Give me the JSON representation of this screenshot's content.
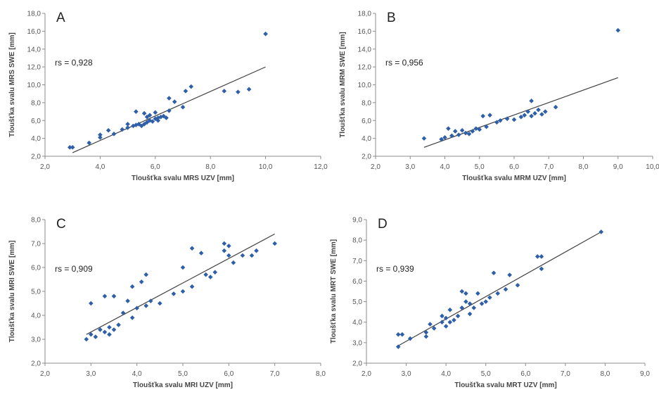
{
  "chart_data": [
    {
      "type": "scatter",
      "panel": "A",
      "annotation": "rs = 0,928",
      "xlabel": "Tloušťka svalu MRS UZV [mm]",
      "ylabel": "Tloušťka svalu MRS SWE [mm]",
      "xlim": [
        2,
        12
      ],
      "ylim": [
        2,
        18
      ],
      "xticks": [
        "2,0",
        "4,0",
        "6,0",
        "8,0",
        "10,0",
        "12,0"
      ],
      "yticks": [
        "2,0",
        "4,0",
        "6,0",
        "8,0",
        "10,0",
        "12,0",
        "14,0",
        "16,0",
        "18,0"
      ],
      "grid": false,
      "legend": false,
      "point_color": "#2e5fa8",
      "trendline": {
        "x": [
          3.0,
          10.0
        ],
        "y": [
          2.4,
          12.0
        ]
      },
      "points": [
        [
          2.9,
          3.0
        ],
        [
          3.0,
          3.0
        ],
        [
          3.6,
          3.5
        ],
        [
          4.0,
          4.1
        ],
        [
          4.0,
          4.4
        ],
        [
          4.3,
          4.9
        ],
        [
          4.5,
          4.5
        ],
        [
          4.8,
          5.0
        ],
        [
          5.0,
          5.2
        ],
        [
          5.0,
          5.6
        ],
        [
          5.2,
          5.4
        ],
        [
          5.3,
          7.0
        ],
        [
          5.3,
          5.5
        ],
        [
          5.4,
          5.6
        ],
        [
          5.5,
          5.4
        ],
        [
          5.6,
          5.6
        ],
        [
          5.6,
          6.8
        ],
        [
          5.7,
          5.8
        ],
        [
          5.7,
          6.4
        ],
        [
          5.8,
          6.0
        ],
        [
          5.8,
          6.6
        ],
        [
          5.9,
          5.9
        ],
        [
          6.0,
          6.2
        ],
        [
          6.0,
          6.9
        ],
        [
          6.1,
          6.0
        ],
        [
          6.1,
          6.3
        ],
        [
          6.2,
          6.4
        ],
        [
          6.3,
          6.5
        ],
        [
          6.4,
          6.3
        ],
        [
          6.5,
          7.1
        ],
        [
          6.5,
          8.5
        ],
        [
          6.7,
          8.1
        ],
        [
          7.0,
          7.5
        ],
        [
          7.1,
          9.3
        ],
        [
          7.3,
          9.8
        ],
        [
          8.5,
          9.3
        ],
        [
          9.0,
          9.2
        ],
        [
          9.4,
          9.5
        ],
        [
          10.0,
          15.7
        ]
      ]
    },
    {
      "type": "scatter",
      "panel": "B",
      "annotation": "rs = 0,956",
      "xlabel": "Tloušťka svalu MRM UZV [mm]",
      "ylabel": "Tloušťka svalu MRM SWE [mm]",
      "xlim": [
        2,
        10
      ],
      "ylim": [
        2,
        18
      ],
      "xticks": [
        "2,0",
        "3,0",
        "4,0",
        "5,0",
        "6,0",
        "7,0",
        "8,0",
        "9,0",
        "10,0"
      ],
      "yticks": [
        "2,0",
        "4,0",
        "6,0",
        "8,0",
        "10,0",
        "12,0",
        "14,0",
        "16,0",
        "18,0"
      ],
      "grid": false,
      "legend": false,
      "point_color": "#2e5fa8",
      "trendline": {
        "x": [
          3.4,
          9.0
        ],
        "y": [
          3.0,
          10.8
        ]
      },
      "points": [
        [
          3.4,
          4.0
        ],
        [
          3.9,
          3.9
        ],
        [
          4.0,
          4.1
        ],
        [
          4.1,
          5.1
        ],
        [
          4.2,
          4.3
        ],
        [
          4.3,
          4.8
        ],
        [
          4.4,
          4.4
        ],
        [
          4.5,
          4.9
        ],
        [
          4.6,
          4.6
        ],
        [
          4.7,
          4.5
        ],
        [
          4.8,
          4.8
        ],
        [
          4.9,
          5.1
        ],
        [
          5.0,
          5.0
        ],
        [
          5.1,
          6.5
        ],
        [
          5.2,
          5.3
        ],
        [
          5.3,
          6.6
        ],
        [
          5.5,
          5.8
        ],
        [
          5.6,
          6.0
        ],
        [
          5.8,
          6.2
        ],
        [
          6.0,
          6.1
        ],
        [
          6.2,
          6.4
        ],
        [
          6.3,
          6.6
        ],
        [
          6.4,
          7.0
        ],
        [
          6.5,
          6.5
        ],
        [
          6.5,
          8.2
        ],
        [
          6.6,
          6.8
        ],
        [
          6.7,
          7.2
        ],
        [
          6.8,
          6.7
        ],
        [
          6.9,
          7.0
        ],
        [
          7.2,
          7.5
        ],
        [
          9.0,
          16.1
        ]
      ]
    },
    {
      "type": "scatter",
      "panel": "C",
      "annotation": "rs = 0,909",
      "xlabel": "Tloušťka svalu MRI UZV [mm]",
      "ylabel": "Tloušťka svalu MRI SWE [mm]",
      "xlim": [
        2,
        8
      ],
      "ylim": [
        2,
        8
      ],
      "xticks": [
        "2,0",
        "3,0",
        "4,0",
        "5,0",
        "6,0",
        "7,0",
        "8,0"
      ],
      "yticks": [
        "2,0",
        "3,0",
        "4,0",
        "5,0",
        "6,0",
        "7,0",
        "8,0"
      ],
      "grid": false,
      "legend": false,
      "point_color": "#2e5fa8",
      "trendline": {
        "x": [
          2.9,
          7.0
        ],
        "y": [
          3.2,
          7.4
        ]
      },
      "points": [
        [
          2.9,
          3.0
        ],
        [
          3.0,
          3.2
        ],
        [
          3.0,
          4.5
        ],
        [
          3.1,
          3.1
        ],
        [
          3.2,
          3.4
        ],
        [
          3.3,
          3.3
        ],
        [
          3.3,
          4.8
        ],
        [
          3.4,
          3.5
        ],
        [
          3.4,
          3.2
        ],
        [
          3.5,
          4.8
        ],
        [
          3.5,
          3.4
        ],
        [
          3.6,
          3.6
        ],
        [
          3.7,
          4.1
        ],
        [
          3.8,
          4.6
        ],
        [
          3.9,
          3.9
        ],
        [
          3.9,
          5.2
        ],
        [
          4.0,
          4.3
        ],
        [
          4.1,
          5.4
        ],
        [
          4.2,
          5.7
        ],
        [
          4.2,
          4.4
        ],
        [
          4.3,
          4.6
        ],
        [
          4.5,
          4.5
        ],
        [
          4.8,
          4.9
        ],
        [
          5.0,
          6.0
        ],
        [
          5.0,
          5.0
        ],
        [
          5.2,
          5.2
        ],
        [
          5.2,
          6.8
        ],
        [
          5.4,
          6.6
        ],
        [
          5.5,
          5.7
        ],
        [
          5.6,
          5.6
        ],
        [
          5.7,
          5.8
        ],
        [
          5.9,
          6.7
        ],
        [
          5.9,
          7.0
        ],
        [
          6.0,
          6.5
        ],
        [
          6.0,
          6.9
        ],
        [
          6.1,
          6.2
        ],
        [
          6.3,
          6.5
        ],
        [
          6.5,
          6.5
        ],
        [
          6.6,
          6.7
        ],
        [
          7.0,
          7.0
        ]
      ]
    },
    {
      "type": "scatter",
      "panel": "D",
      "annotation": "rs = 0,939",
      "xlabel": "Tloušťka svalu MRT UZV [mm]",
      "ylabel": "Tloušťka svalu MRT SWE [mm]",
      "xlim": [
        2,
        9
      ],
      "ylim": [
        2,
        9
      ],
      "xticks": [
        "2,0",
        "3,0",
        "4,0",
        "5,0",
        "6,0",
        "7,0",
        "8,0",
        "9,0"
      ],
      "yticks": [
        "2,0",
        "3,0",
        "4,0",
        "5,0",
        "6,0",
        "7,0",
        "8,0",
        "9,0"
      ],
      "grid": false,
      "legend": false,
      "point_color": "#2e5fa8",
      "trendline": {
        "x": [
          2.8,
          7.9
        ],
        "y": [
          2.85,
          8.4
        ]
      },
      "points": [
        [
          2.8,
          2.8
        ],
        [
          2.8,
          3.4
        ],
        [
          2.9,
          3.4
        ],
        [
          3.1,
          3.2
        ],
        [
          3.5,
          3.3
        ],
        [
          3.5,
          3.5
        ],
        [
          3.6,
          3.9
        ],
        [
          3.7,
          3.7
        ],
        [
          3.9,
          4.0
        ],
        [
          3.9,
          4.3
        ],
        [
          4.0,
          3.8
        ],
        [
          4.0,
          4.2
        ],
        [
          4.1,
          4.6
        ],
        [
          4.1,
          4.0
        ],
        [
          4.2,
          4.1
        ],
        [
          4.3,
          4.3
        ],
        [
          4.4,
          4.7
        ],
        [
          4.4,
          5.5
        ],
        [
          4.5,
          5.0
        ],
        [
          4.5,
          5.4
        ],
        [
          4.6,
          4.4
        ],
        [
          4.6,
          4.9
        ],
        [
          4.7,
          4.7
        ],
        [
          4.8,
          5.4
        ],
        [
          4.9,
          4.9
        ],
        [
          5.0,
          5.0
        ],
        [
          5.1,
          5.2
        ],
        [
          5.2,
          6.4
        ],
        [
          5.3,
          5.4
        ],
        [
          5.5,
          5.6
        ],
        [
          5.6,
          6.3
        ],
        [
          5.8,
          5.8
        ],
        [
          6.3,
          7.2
        ],
        [
          6.4,
          6.6
        ],
        [
          6.4,
          7.2
        ],
        [
          7.9,
          8.4
        ]
      ]
    }
  ]
}
